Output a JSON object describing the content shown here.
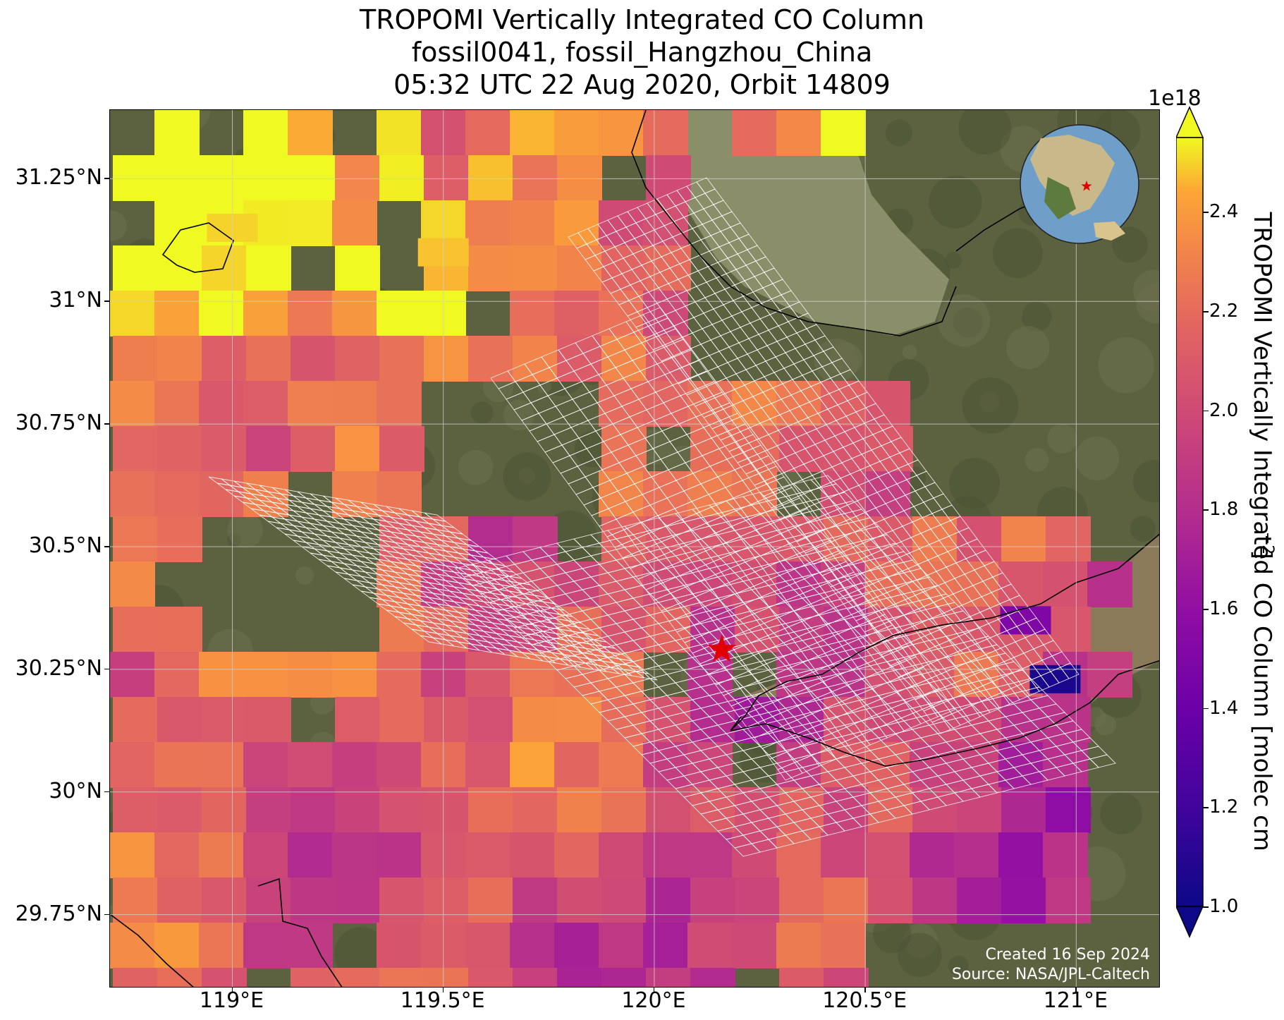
{
  "title": {
    "line1": "TROPOMI Vertically Integrated CO Column",
    "line2": "fossil0041, fossil_Hangzhou_China",
    "line3": "05:32 UTC 22 Aug 2020, Orbit 14809"
  },
  "map": {
    "extent": {
      "lon": [
        118.71,
        121.2
      ],
      "lat": [
        29.6,
        31.39
      ]
    },
    "lat_ticks": [
      {
        "value": 31.25,
        "label": "31.25°N"
      },
      {
        "value": 31.0,
        "label": "31°N"
      },
      {
        "value": 30.75,
        "label": "30.75°N"
      },
      {
        "value": 30.5,
        "label": "30.5°N"
      },
      {
        "value": 30.25,
        "label": "30.25°N"
      },
      {
        "value": 30.0,
        "label": "30°N"
      },
      {
        "value": 29.75,
        "label": "29.75°N"
      }
    ],
    "lon_ticks": [
      {
        "value": 119.0,
        "label": "119°E"
      },
      {
        "value": 119.5,
        "label": "119.5°E"
      },
      {
        "value": 120.0,
        "label": "120°E"
      },
      {
        "value": 120.5,
        "label": "120.5°E"
      },
      {
        "value": 121.0,
        "label": "121°E"
      }
    ],
    "site_marker": {
      "lon": 120.16,
      "lat": 30.29,
      "color": "#e00000",
      "symbol": "star"
    },
    "basemap": "satellite imagery",
    "gridlines": true,
    "inset_globe": {
      "center": "East Asia",
      "marker_color": "#e00000"
    },
    "colors": {
      "lake": "#8a8f6a",
      "land": "#5c6240",
      "sea": "#8a7a5a",
      "coast": "#000000",
      "footprint": "#ffffff"
    }
  },
  "colorbar": {
    "multiplier": "1e18",
    "label": "TROPOMI Vertically Integrated CO Column [molec cm",
    "label_exp": "−2",
    "label_end": "]",
    "min": 1.0,
    "max": 2.55,
    "ticks": [
      {
        "value": 1.0,
        "label": "1.0"
      },
      {
        "value": 1.2,
        "label": "1.2"
      },
      {
        "value": 1.4,
        "label": "1.4"
      },
      {
        "value": 1.6,
        "label": "1.6"
      },
      {
        "value": 1.8,
        "label": "1.8"
      },
      {
        "value": 2.0,
        "label": "2.0"
      },
      {
        "value": 2.2,
        "label": "2.2"
      },
      {
        "value": 2.4,
        "label": "2.4"
      }
    ],
    "colormap": "plasma",
    "extend": "both"
  },
  "credits": {
    "created": "Created 16 Sep 2024",
    "source": "Source: NASA/JPL-Caltech"
  },
  "chart_data": {
    "type": "heatmap",
    "title": "TROPOMI Vertically Integrated CO Column",
    "units": "molec cm^-2 (x 1e18)",
    "lon_range": [
      118.71,
      121.2
    ],
    "lat_range": [
      29.6,
      31.39
    ],
    "min_value": 1.0,
    "max_value": 2.55,
    "notable_values": [
      {
        "lon": 120.95,
        "lat": 30.23,
        "value": 1.05
      },
      {
        "lon": 120.88,
        "lat": 30.35,
        "value": 1.5
      },
      {
        "lon": 119.0,
        "lat": 31.15,
        "value": 2.5
      },
      {
        "lon": 119.5,
        "lat": 31.1,
        "value": 2.48
      }
    ]
  }
}
